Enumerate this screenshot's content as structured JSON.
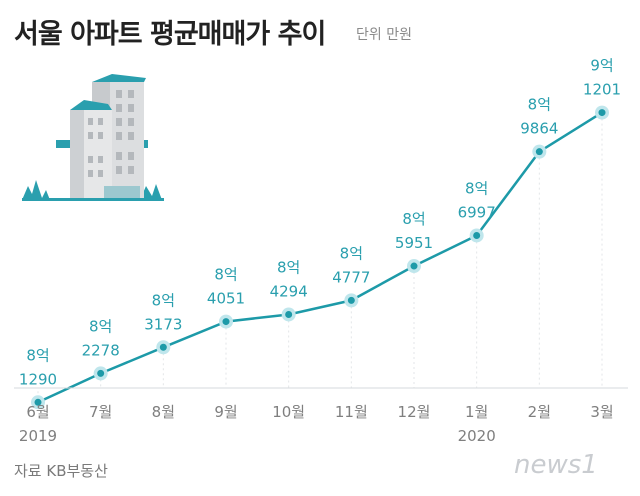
{
  "title": "서울 아파트 평균매매가 추이",
  "unit": "단위 만원",
  "source": "자료 KB부동산",
  "brand": "news1",
  "colors": {
    "line": "#1d9aa8",
    "label": "#2a9fae",
    "tick": "#7f7f7f"
  },
  "chart_data": {
    "type": "line",
    "title": "서울 아파트 평균매매가 추이",
    "unit": "만원",
    "categories": [
      "6월",
      "7월",
      "8월",
      "9월",
      "10월",
      "11월",
      "12월",
      "1월",
      "2월",
      "3월"
    ],
    "year_labels": [
      {
        "index": 0,
        "text": "2019"
      },
      {
        "index": 7,
        "text": "2020"
      }
    ],
    "values": [
      81290,
      82278,
      83173,
      84051,
      84294,
      84777,
      85951,
      86997,
      89864,
      91201
    ],
    "value_labels": [
      [
        "8억",
        "1290"
      ],
      [
        "8억",
        "2278"
      ],
      [
        "8억",
        "3173"
      ],
      [
        "8억",
        "4051"
      ],
      [
        "8억",
        "4294"
      ],
      [
        "8억",
        "4777"
      ],
      [
        "8억",
        "5951"
      ],
      [
        "8억",
        "6997"
      ],
      [
        "8억",
        "9864"
      ],
      [
        "9억",
        "1201"
      ]
    ],
    "ylim": [
      80000,
      93000
    ],
    "grid": false,
    "legend": "none"
  }
}
